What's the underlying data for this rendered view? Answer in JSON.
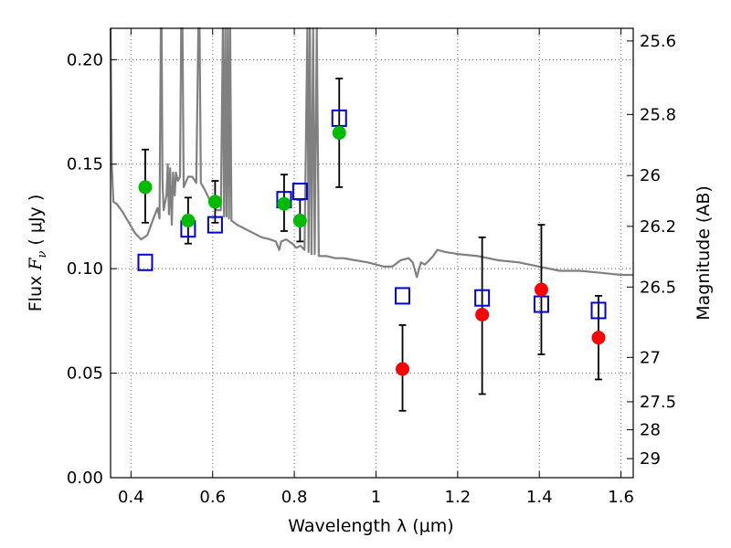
{
  "chart_data": {
    "type": "scatter",
    "xlabel": "Wavelength  λ (μm)",
    "ylabel_parts": [
      "Flux ",
      "F",
      "ν",
      "  ( μJy )"
    ],
    "ylabel_right": "Magnitude (AB)",
    "xlim": [
      0.35,
      1.63
    ],
    "ylim": [
      0.0,
      0.215
    ],
    "grid": true,
    "x_ticks": [
      0.4,
      0.6,
      0.8,
      1.0,
      1.2,
      1.4,
      1.6
    ],
    "x_tick_labels": [
      "0.4",
      "0.6",
      "0.8",
      "1",
      "1.2",
      "1.4",
      "1.6"
    ],
    "y_ticks": [
      0.0,
      0.05,
      0.1,
      0.15,
      0.2
    ],
    "y_tick_labels": [
      "0.00",
      "0.05",
      "0.10",
      "0.15",
      "0.20"
    ],
    "right_ticks": [
      {
        "label": "25.6",
        "mag": 25.6
      },
      {
        "label": "25.8",
        "mag": 25.8
      },
      {
        "label": "26",
        "mag": 26.0
      },
      {
        "label": "26.2",
        "mag": 26.2
      },
      {
        "label": "26.5",
        "mag": 26.5
      },
      {
        "label": "27",
        "mag": 27.0
      },
      {
        "label": "27.5",
        "mag": 27.5
      },
      {
        "label": "28",
        "mag": 28.0
      },
      {
        "label": "29",
        "mag": 29.0
      }
    ],
    "colors": {
      "green": "#00bb00",
      "red": "#ff0000",
      "open_square": "#0000cc",
      "model": "#808080",
      "errorbar": "#000000",
      "grid": "#666666"
    },
    "series": [
      {
        "marker": "green-filled-circle",
        "points": [
          {
            "x": 0.435,
            "y": 0.139,
            "yerr_low": 0.122,
            "yerr_high": 0.157
          },
          {
            "x": 0.54,
            "y": 0.123,
            "yerr_low": 0.112,
            "yerr_high": 0.134
          },
          {
            "x": 0.606,
            "y": 0.132,
            "yerr_low": 0.122,
            "yerr_high": 0.142
          },
          {
            "x": 0.775,
            "y": 0.131,
            "yerr_low": 0.118,
            "yerr_high": 0.145
          },
          {
            "x": 0.814,
            "y": 0.123,
            "yerr_low": 0.113,
            "yerr_high": 0.133
          },
          {
            "x": 0.91,
            "y": 0.165,
            "yerr_low": 0.139,
            "yerr_high": 0.191
          }
        ]
      },
      {
        "marker": "red-filled-circle",
        "points": [
          {
            "x": 1.065,
            "y": 0.052,
            "yerr_low": 0.032,
            "yerr_high": 0.073
          },
          {
            "x": 1.26,
            "y": 0.078,
            "yerr_low": 0.04,
            "yerr_high": 0.115
          },
          {
            "x": 1.405,
            "y": 0.09,
            "yerr_low": 0.059,
            "yerr_high": 0.121
          },
          {
            "x": 1.545,
            "y": 0.067,
            "yerr_low": 0.047,
            "yerr_high": 0.087
          }
        ]
      },
      {
        "marker": "blue-open-square",
        "points": [
          {
            "x": 0.435,
            "y": 0.103
          },
          {
            "x": 0.54,
            "y": 0.119
          },
          {
            "x": 0.606,
            "y": 0.121
          },
          {
            "x": 0.775,
            "y": 0.133
          },
          {
            "x": 0.814,
            "y": 0.137
          },
          {
            "x": 0.91,
            "y": 0.172
          },
          {
            "x": 1.065,
            "y": 0.087
          },
          {
            "x": 1.26,
            "y": 0.086
          },
          {
            "x": 1.405,
            "y": 0.083
          },
          {
            "x": 1.545,
            "y": 0.08
          }
        ]
      },
      {
        "marker": "gray-model-spectrum",
        "points": [
          {
            "x": 0.35,
            "y": 0.215
          },
          {
            "x": 0.353,
            "y": 0.15
          },
          {
            "x": 0.357,
            "y": 0.132
          },
          {
            "x": 0.365,
            "y": 0.131
          },
          {
            "x": 0.38,
            "y": 0.127
          },
          {
            "x": 0.395,
            "y": 0.122
          },
          {
            "x": 0.41,
            "y": 0.117
          },
          {
            "x": 0.425,
            "y": 0.114
          },
          {
            "x": 0.44,
            "y": 0.116
          },
          {
            "x": 0.455,
            "y": 0.124
          },
          {
            "x": 0.465,
            "y": 0.129
          },
          {
            "x": 0.47,
            "y": 0.124
          },
          {
            "x": 0.473,
            "y": 0.215
          },
          {
            "x": 0.475,
            "y": 0.215
          },
          {
            "x": 0.477,
            "y": 0.142
          },
          {
            "x": 0.48,
            "y": 0.128
          },
          {
            "x": 0.487,
            "y": 0.135
          },
          {
            "x": 0.49,
            "y": 0.15
          },
          {
            "x": 0.493,
            "y": 0.126
          },
          {
            "x": 0.496,
            "y": 0.148
          },
          {
            "x": 0.5,
            "y": 0.121
          },
          {
            "x": 0.503,
            "y": 0.146
          },
          {
            "x": 0.507,
            "y": 0.135
          },
          {
            "x": 0.51,
            "y": 0.146
          },
          {
            "x": 0.515,
            "y": 0.142
          },
          {
            "x": 0.52,
            "y": 0.144
          },
          {
            "x": 0.523,
            "y": 0.215
          },
          {
            "x": 0.526,
            "y": 0.215
          },
          {
            "x": 0.529,
            "y": 0.139
          },
          {
            "x": 0.54,
            "y": 0.144
          },
          {
            "x": 0.55,
            "y": 0.144
          },
          {
            "x": 0.56,
            "y": 0.141
          },
          {
            "x": 0.565,
            "y": 0.215
          },
          {
            "x": 0.568,
            "y": 0.215
          },
          {
            "x": 0.571,
            "y": 0.141
          },
          {
            "x": 0.58,
            "y": 0.138
          },
          {
            "x": 0.59,
            "y": 0.134
          },
          {
            "x": 0.6,
            "y": 0.13
          },
          {
            "x": 0.61,
            "y": 0.128
          },
          {
            "x": 0.62,
            "y": 0.128
          },
          {
            "x": 0.625,
            "y": 0.215
          },
          {
            "x": 0.628,
            "y": 0.125
          },
          {
            "x": 0.631,
            "y": 0.215
          },
          {
            "x": 0.634,
            "y": 0.125
          },
          {
            "x": 0.637,
            "y": 0.215
          },
          {
            "x": 0.64,
            "y": 0.124
          },
          {
            "x": 0.643,
            "y": 0.215
          },
          {
            "x": 0.646,
            "y": 0.123
          },
          {
            "x": 0.66,
            "y": 0.121
          },
          {
            "x": 0.68,
            "y": 0.119
          },
          {
            "x": 0.7,
            "y": 0.117
          },
          {
            "x": 0.72,
            "y": 0.115
          },
          {
            "x": 0.74,
            "y": 0.114
          },
          {
            "x": 0.755,
            "y": 0.113
          },
          {
            "x": 0.763,
            "y": 0.109
          },
          {
            "x": 0.768,
            "y": 0.113
          },
          {
            "x": 0.78,
            "y": 0.114
          },
          {
            "x": 0.795,
            "y": 0.112
          },
          {
            "x": 0.805,
            "y": 0.11
          },
          {
            "x": 0.815,
            "y": 0.111
          },
          {
            "x": 0.825,
            "y": 0.109
          },
          {
            "x": 0.832,
            "y": 0.215
          },
          {
            "x": 0.835,
            "y": 0.108
          },
          {
            "x": 0.838,
            "y": 0.215
          },
          {
            "x": 0.842,
            "y": 0.107
          },
          {
            "x": 0.846,
            "y": 0.215
          },
          {
            "x": 0.85,
            "y": 0.107
          },
          {
            "x": 0.855,
            "y": 0.215
          },
          {
            "x": 0.86,
            "y": 0.106
          },
          {
            "x": 0.88,
            "y": 0.106
          },
          {
            "x": 0.9,
            "y": 0.105
          },
          {
            "x": 0.92,
            "y": 0.105
          },
          {
            "x": 0.95,
            "y": 0.104
          },
          {
            "x": 0.98,
            "y": 0.103
          },
          {
            "x": 1.0,
            "y": 0.102
          },
          {
            "x": 1.02,
            "y": 0.101
          },
          {
            "x": 1.04,
            "y": 0.101
          },
          {
            "x": 1.06,
            "y": 0.104
          },
          {
            "x": 1.08,
            "y": 0.105
          },
          {
            "x": 1.09,
            "y": 0.103
          },
          {
            "x": 1.1,
            "y": 0.096
          },
          {
            "x": 1.11,
            "y": 0.103
          },
          {
            "x": 1.12,
            "y": 0.102
          },
          {
            "x": 1.13,
            "y": 0.104
          },
          {
            "x": 1.14,
            "y": 0.106
          },
          {
            "x": 1.15,
            "y": 0.109
          },
          {
            "x": 1.17,
            "y": 0.108
          },
          {
            "x": 1.2,
            "y": 0.107
          },
          {
            "x": 1.25,
            "y": 0.106
          },
          {
            "x": 1.3,
            "y": 0.104
          },
          {
            "x": 1.35,
            "y": 0.103
          },
          {
            "x": 1.4,
            "y": 0.101
          },
          {
            "x": 1.45,
            "y": 0.099
          },
          {
            "x": 1.5,
            "y": 0.099
          },
          {
            "x": 1.55,
            "y": 0.098
          },
          {
            "x": 1.6,
            "y": 0.097
          },
          {
            "x": 1.63,
            "y": 0.097
          }
        ]
      }
    ]
  }
}
